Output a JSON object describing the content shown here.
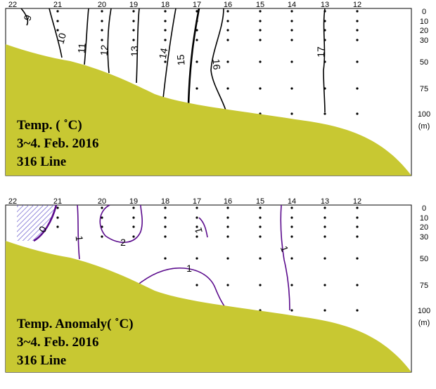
{
  "colors": {
    "bottom": "#c8c832",
    "contour": "#000000",
    "anomaly_contour": "#5a0a8c",
    "hatch": "#6a5acd"
  },
  "chart_data": [
    {
      "type": "contour",
      "stations": [
        "22",
        "21",
        "20",
        "19",
        "18",
        "17",
        "16",
        "15",
        "14",
        "13",
        "12"
      ],
      "depth_ticks": [
        "0",
        "10",
        "20",
        "30",
        "50",
        "75",
        "100"
      ],
      "depth_unit": "(m)",
      "contour_levels": [
        "9",
        "10",
        "11",
        "12",
        "13",
        "14",
        "15",
        "16",
        "17"
      ],
      "caption": [
        "Temp. ( ˚C)",
        "3~4. Feb. 2016",
        "316 Line"
      ]
    },
    {
      "type": "contour",
      "stations": [
        "22",
        "21",
        "20",
        "19",
        "18",
        "17",
        "16",
        "15",
        "14",
        "13",
        "12"
      ],
      "depth_ticks": [
        "0",
        "10",
        "20",
        "30",
        "50",
        "75",
        "100"
      ],
      "depth_unit": "(m)",
      "contour_levels": [
        "0",
        "1",
        "2",
        "1",
        "1",
        "1"
      ],
      "caption": [
        "Temp. Anomaly( ˚C)",
        "3~4. Feb. 2016",
        "316 Line"
      ]
    }
  ]
}
